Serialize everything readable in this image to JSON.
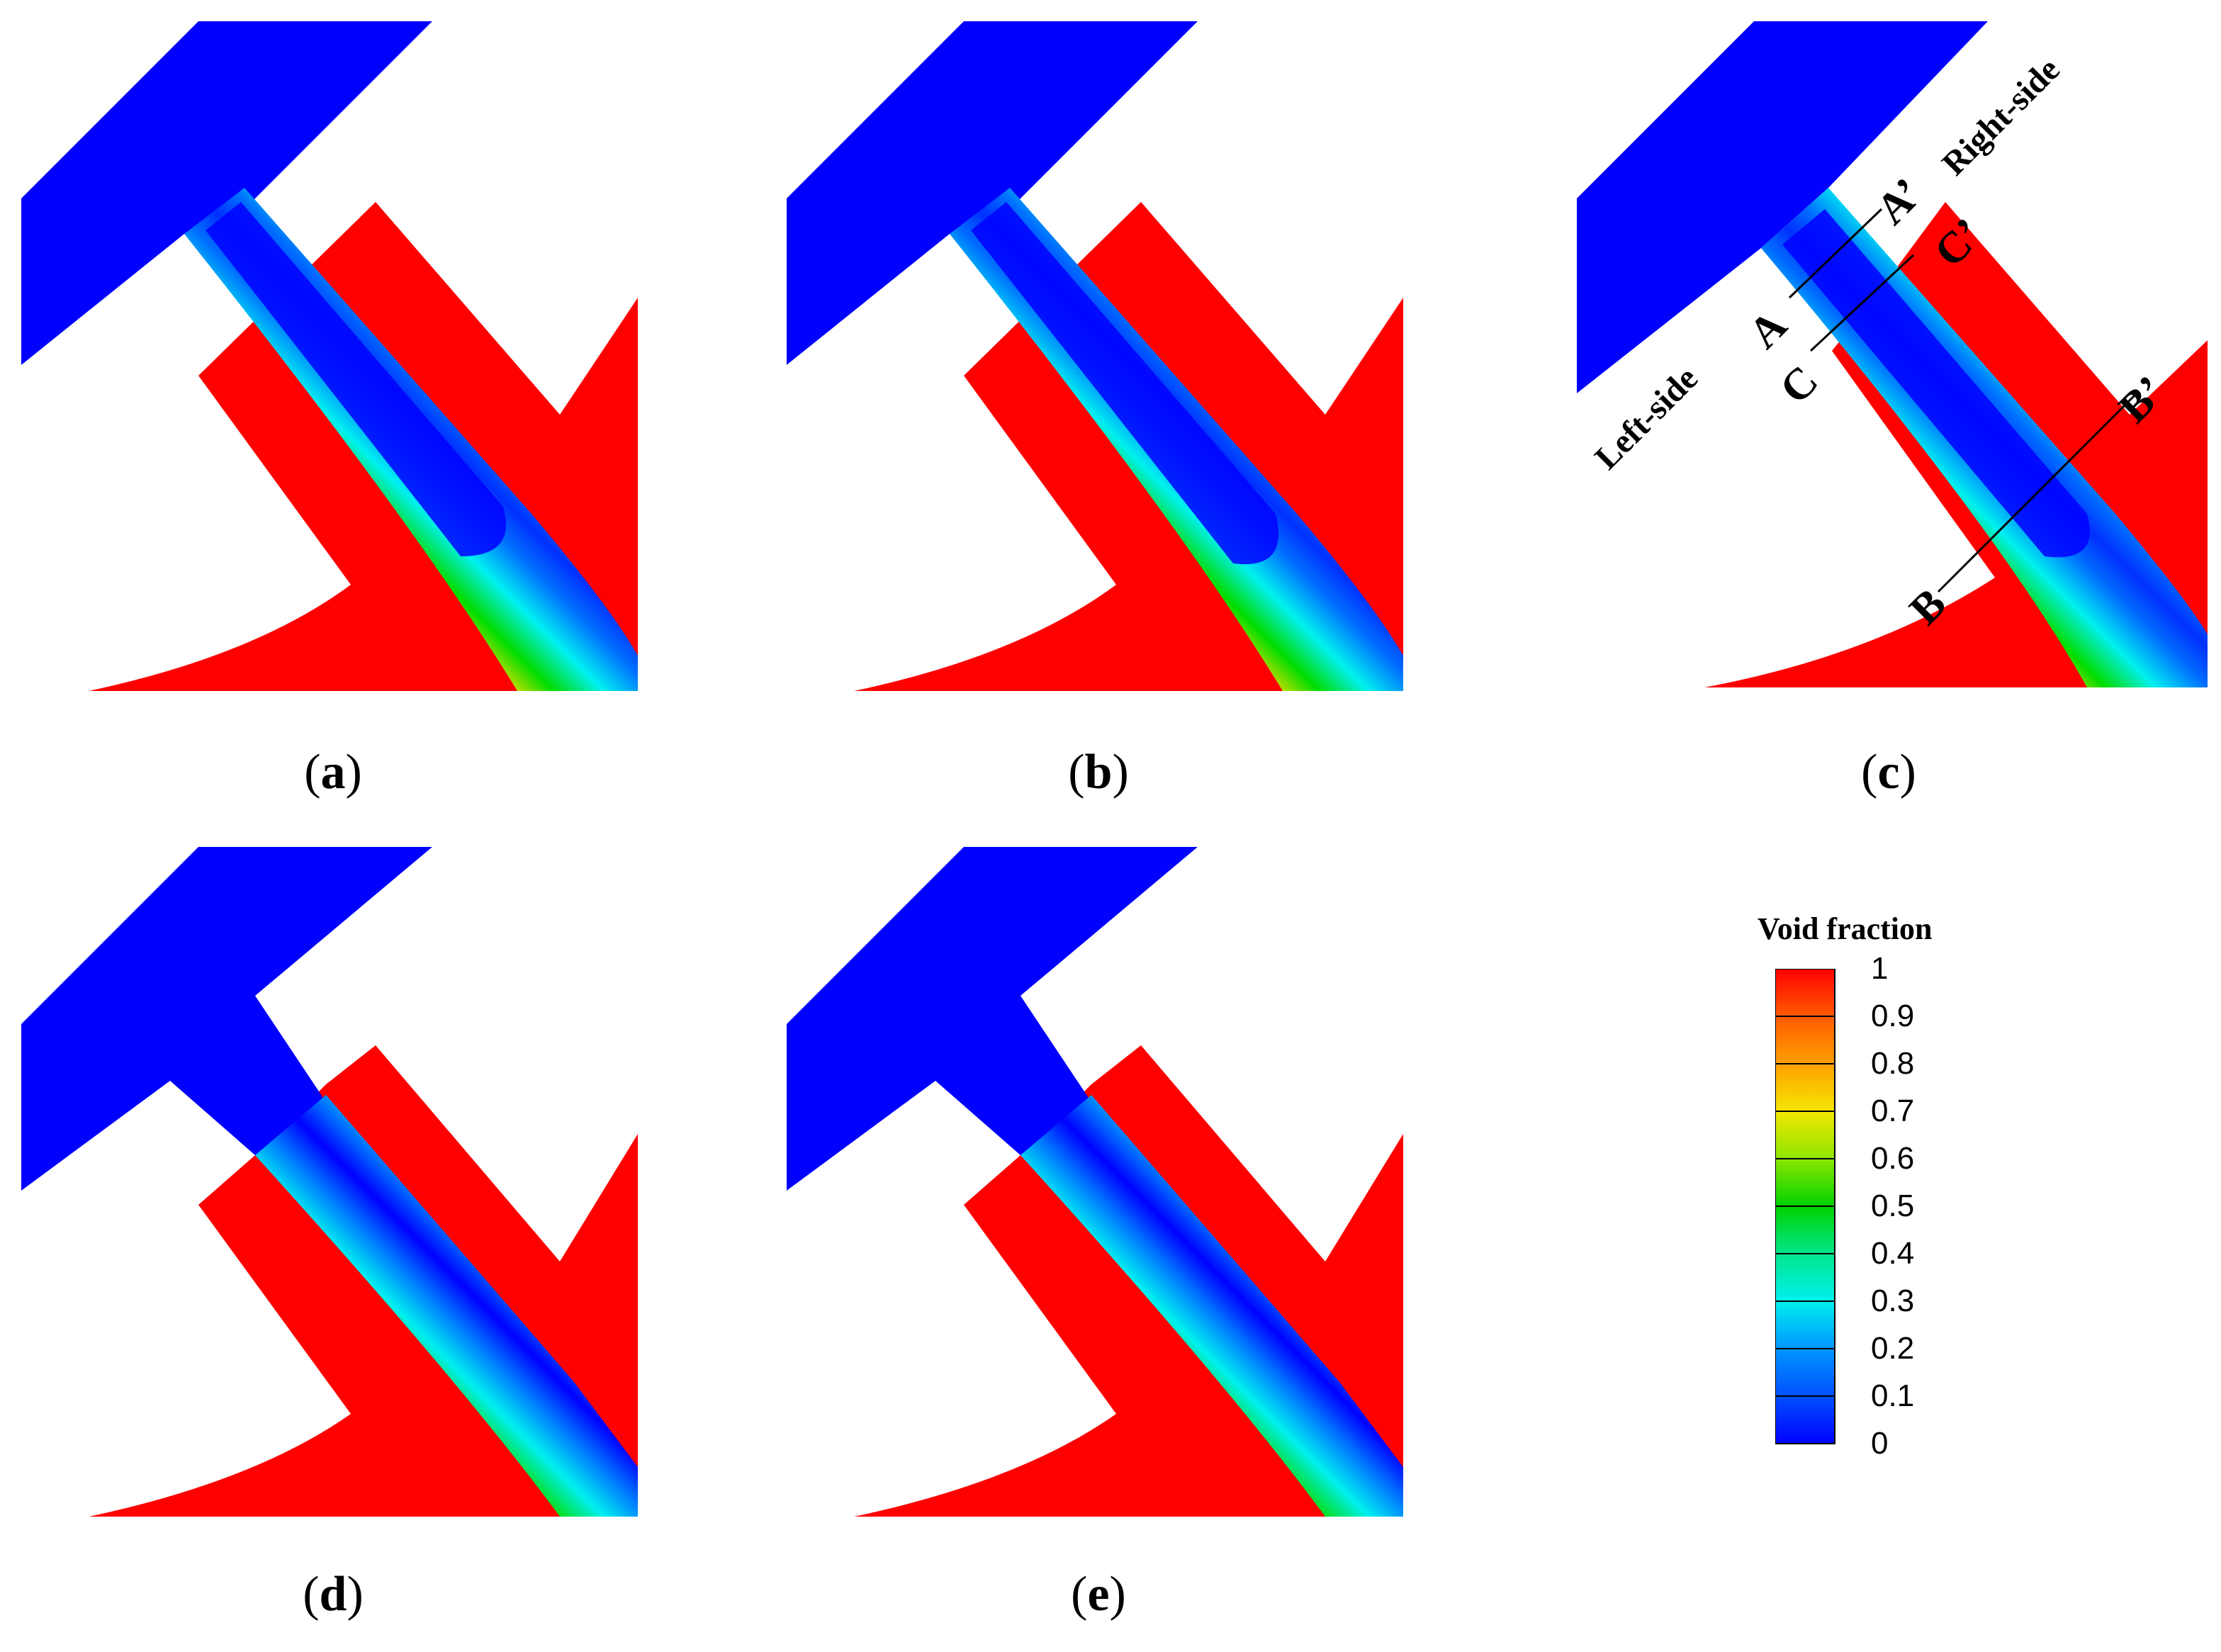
{
  "panels": [
    {
      "id": "a",
      "caption_letter": "a",
      "variant": "attached"
    },
    {
      "id": "b",
      "caption_letter": "b",
      "variant": "attached"
    },
    {
      "id": "c",
      "caption_letter": "c",
      "variant": "attached"
    },
    {
      "id": "d",
      "caption_letter": "d",
      "variant": "detached"
    },
    {
      "id": "e",
      "caption_letter": "e",
      "variant": "detached"
    }
  ],
  "annotations": {
    "left_side": "Left-side",
    "right_side": "Right-side",
    "A": "A",
    "A_prime": "A’",
    "B": "B",
    "B_prime": "B’",
    "C": "C",
    "C_prime": "C’"
  },
  "legend": {
    "title": "Void fraction",
    "ticks": [
      "1",
      "0.9",
      "0.8",
      "0.7",
      "0.6",
      "0.5",
      "0.4",
      "0.3",
      "0.2",
      "0.1",
      "0"
    ],
    "colors": [
      "#ff0000",
      "#ff5a00",
      "#ffa000",
      "#f5e600",
      "#8ce600",
      "#00d200",
      "#00e68c",
      "#00f0f0",
      "#0096ff",
      "#0050ff",
      "#0000ff"
    ]
  },
  "colors": {
    "liquid": "#0000ff",
    "vapor": "#ff0000"
  }
}
